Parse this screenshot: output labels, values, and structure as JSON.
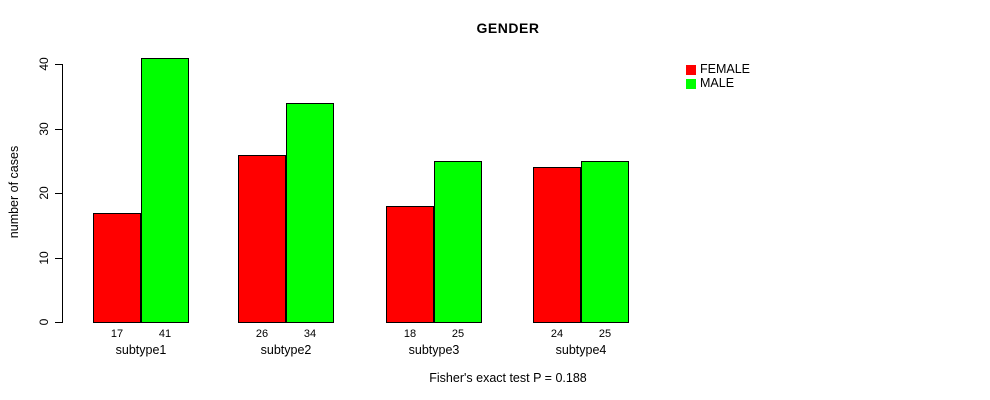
{
  "chart_data": {
    "type": "bar",
    "title": "GENDER",
    "xlabel": "",
    "ylabel": "number of cases",
    "categories": [
      "subtype1",
      "subtype2",
      "subtype3",
      "subtype4"
    ],
    "series": [
      {
        "name": "FEMALE",
        "color": "#FF0000",
        "values": [
          17,
          26,
          18,
          24
        ]
      },
      {
        "name": "MALE",
        "color": "#00FF00",
        "values": [
          41,
          34,
          25,
          25
        ]
      }
    ],
    "yticks": [
      0,
      10,
      20,
      30,
      40
    ],
    "ylim": [
      0,
      41
    ],
    "bar_value_labels_shown": true,
    "grid": false,
    "legend_position": "top-right",
    "footnote": "Fisher's exact test P = 0.188"
  }
}
